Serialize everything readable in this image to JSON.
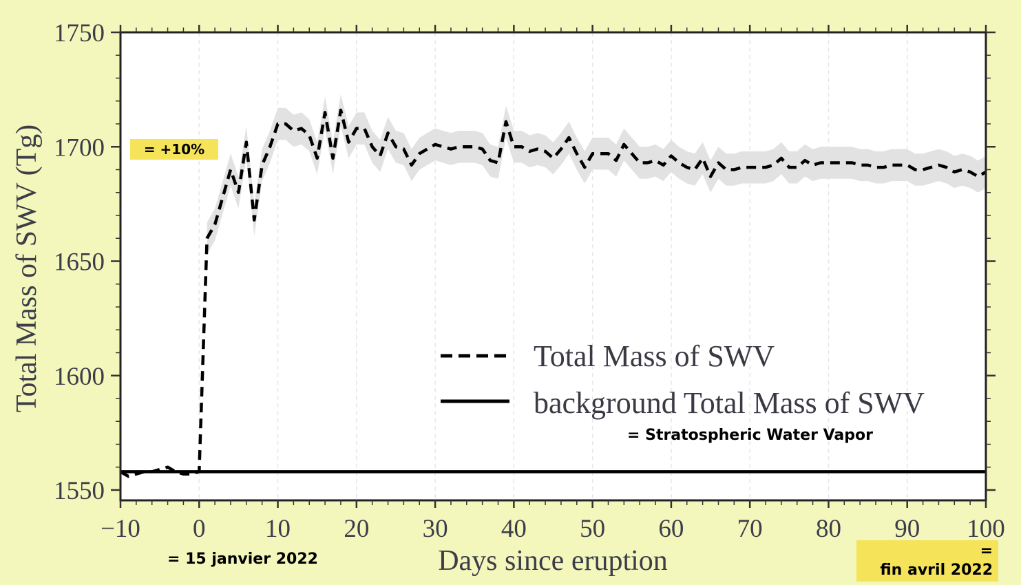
{
  "chart_data": {
    "type": "line",
    "title": "",
    "xlabel": "Days since eruption",
    "ylabel": "Total Mass of SWV (Tg)",
    "xlim": [
      -10,
      100
    ],
    "ylim": [
      1550,
      1750
    ],
    "x_ticks": [
      -10,
      0,
      10,
      20,
      30,
      40,
      50,
      60,
      70,
      80,
      90,
      100
    ],
    "x_tick_labels": [
      "−10",
      "0",
      "10",
      "20",
      "30",
      "40",
      "50",
      "60",
      "70",
      "80",
      "90",
      "100"
    ],
    "y_ticks": [
      1550,
      1600,
      1650,
      1700,
      1750
    ],
    "y_tick_labels": [
      "1550",
      "1600",
      "1650",
      "1700",
      "1750"
    ],
    "grid": "vertical dashed at major x ticks",
    "legend_position": "lower-right",
    "series": [
      {
        "name": "Total Mass of SWV",
        "style": "dashed",
        "color": "#000000",
        "x": [
          -10,
          -9,
          -8,
          -7,
          -6,
          -5,
          -4,
          -3,
          -2,
          -1,
          0,
          1,
          2,
          3,
          4,
          5,
          6,
          7,
          8,
          9,
          10,
          11,
          12,
          13,
          14,
          15,
          16,
          17,
          18,
          19,
          20,
          21,
          22,
          23,
          24,
          25,
          26,
          27,
          28,
          29,
          30,
          31,
          32,
          33,
          34,
          35,
          36,
          37,
          38,
          39,
          40,
          41,
          42,
          43,
          44,
          45,
          46,
          47,
          48,
          49,
          50,
          51,
          52,
          53,
          54,
          55,
          56,
          57,
          58,
          59,
          60,
          61,
          62,
          63,
          64,
          65,
          66,
          67,
          68,
          69,
          70,
          71,
          72,
          73,
          74,
          75,
          76,
          77,
          78,
          79,
          80,
          81,
          82,
          83,
          84,
          85,
          86,
          87,
          88,
          89,
          90,
          91,
          92,
          93,
          94,
          95,
          96,
          97,
          98,
          99,
          100
        ],
        "y": [
          1558,
          1556,
          1557,
          1558,
          1558,
          1559,
          1560,
          1558,
          1557,
          1557,
          1558,
          1660,
          1666,
          1678,
          1690,
          1680,
          1702,
          1668,
          1692,
          1700,
          1710,
          1710,
          1707,
          1708,
          1705,
          1695,
          1715,
          1695,
          1716,
          1702,
          1708,
          1708,
          1700,
          1696,
          1706,
          1700,
          1699,
          1692,
          1697,
          1699,
          1701,
          1700,
          1699,
          1700,
          1700,
          1700,
          1699,
          1694,
          1693,
          1711,
          1700,
          1700,
          1698,
          1699,
          1698,
          1695,
          1699,
          1704,
          1697,
          1691,
          1697,
          1697,
          1697,
          1694,
          1701,
          1697,
          1693,
          1693,
          1694,
          1692,
          1696,
          1693,
          1691,
          1690,
          1695,
          1687,
          1693,
          1690,
          1690,
          1691,
          1691,
          1691,
          1691,
          1692,
          1695,
          1691,
          1691,
          1694,
          1692,
          1693,
          1693,
          1693,
          1693,
          1693,
          1692,
          1692,
          1691,
          1691,
          1692,
          1692,
          1692,
          1690,
          1690,
          1691,
          1692,
          1691,
          1689,
          1690,
          1689,
          1687,
          1689
        ]
      },
      {
        "name": "background Total Mass of SWV",
        "style": "solid",
        "color": "#000000",
        "x": [
          -10,
          100
        ],
        "y": [
          1558,
          1558
        ]
      }
    ],
    "uncertainty_band": {
      "series": "Total Mass of SWV",
      "color": "#e2e2e2",
      "x_start": 1,
      "half_width": 7
    }
  },
  "annotations": {
    "percent": "= +10%",
    "swv": "= Stratospheric Water Vapor",
    "start_date": "= 15 janvier 2022",
    "end_eq": "=",
    "end_date": "fin avril 2022"
  },
  "colors": {
    "page_background": "#f3f7bb",
    "highlight": "#f5e35a",
    "plot_background": "#ffffff"
  }
}
